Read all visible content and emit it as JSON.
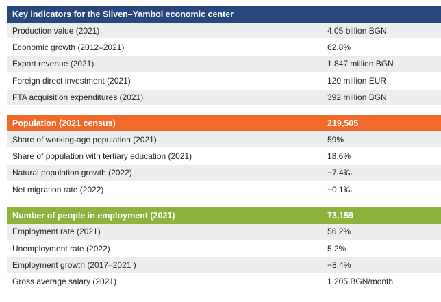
{
  "sections": [
    {
      "id": "key-indicators",
      "header": {
        "label": "Key indicators for the Sliven–Yambol economic center",
        "value": ""
      },
      "color": "#27487f",
      "rows": [
        {
          "label": "Production value (2021)",
          "value": "4.05 billion BGN"
        },
        {
          "label": "Economic growth (2012–2021)",
          "value": "62.8%"
        },
        {
          "label": "Export revenue (2021)",
          "value": "1,847 million BGN"
        },
        {
          "label": "Foreign direct investment (2021)",
          "value": "120 million EUR"
        },
        {
          "label": "FTA acquisition expenditures (2021)",
          "value": "392 million BGN"
        }
      ]
    },
    {
      "id": "population",
      "header": {
        "label": "Population (2021 census)",
        "value": "219,505"
      },
      "color": "#f26a2a",
      "rows": [
        {
          "label": "Share of working-age population (2021)",
          "value": "59%"
        },
        {
          "label": "Share of population with tertiary education (2021)",
          "value": "18.6%"
        },
        {
          "label": "Natural population growth (2022)",
          "value": "−7.4‰"
        },
        {
          "label": "Net migration rate (2022)",
          "value": "−0.1‰"
        }
      ]
    },
    {
      "id": "employment",
      "header": {
        "label": "Number of people in employment (2021)",
        "value": "73,159"
      },
      "color": "#8db33c",
      "rows": [
        {
          "label": "Employment rate (2021)",
          "value": "56.2%"
        },
        {
          "label": "Unemployment rate (2022)",
          "value": "5.2%"
        },
        {
          "label": "Employment growth (2017–2021 )",
          "value": "−8.4%"
        },
        {
          "label": "Gross average salary (2021)",
          "value": "1,205 BGN/month"
        }
      ]
    }
  ]
}
